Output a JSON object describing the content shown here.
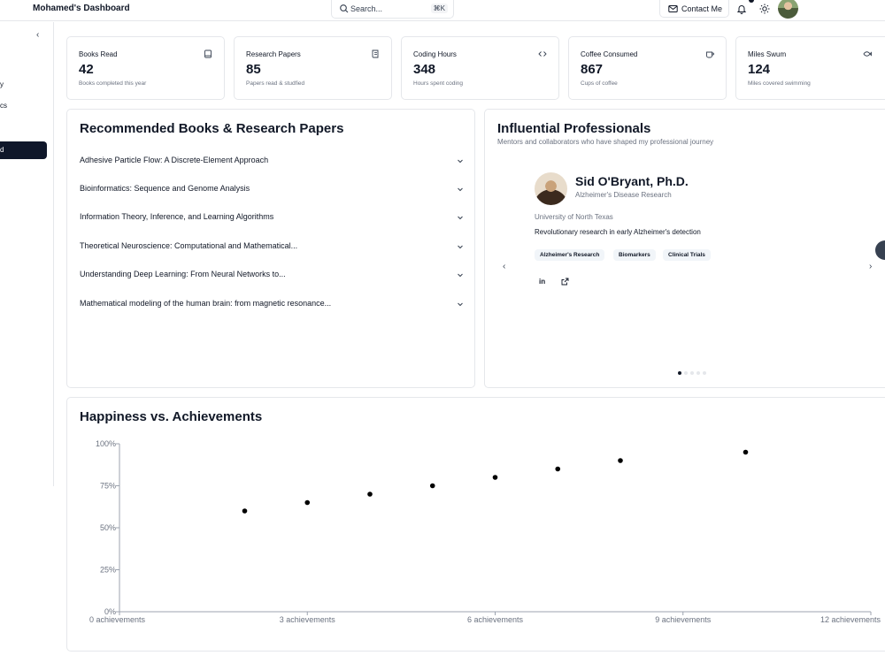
{
  "header": {
    "brand": "Mohamed's Dashboard",
    "search_placeholder": "Search...",
    "search_shortcut": "⌘K",
    "contact_label": "Contact Me"
  },
  "sidebar": {
    "collapse_icon": "chevron-left-icon",
    "fragments": [
      "y",
      "cs"
    ],
    "active_fragment": "d"
  },
  "stats": [
    {
      "label": "Books Read",
      "value": "42",
      "sub": "Books completed this year",
      "icon": "book-icon"
    },
    {
      "label": "Research Papers",
      "value": "85",
      "sub": "Papers read & studfied",
      "icon": "scroll-icon"
    },
    {
      "label": "Coding Hours",
      "value": "348",
      "sub": "Hours spent coding",
      "icon": "code-icon"
    },
    {
      "label": "Coffee Consumed",
      "value": "867",
      "sub": "Cups of coffee",
      "icon": "coffee-icon"
    },
    {
      "label": "Miles Swum",
      "value": "124",
      "sub": "Miles covered swimming",
      "icon": "fish-icon"
    }
  ],
  "books": {
    "title": "Recommended Books & Research Papers",
    "items": [
      "Adhesive Particle Flow: A Discrete-Element Approach",
      "Bioinformatics: Sequence and Genome Analysis",
      "Information Theory, Inference, and Learning Algorithms",
      "Theoretical Neuroscience: Computational and Mathematical...",
      "Understanding Deep Learning: From Neural Networks to...",
      "Mathematical modeling of the human brain: from magnetic resonance..."
    ]
  },
  "professionals": {
    "title": "Influential Professionals",
    "subtitle": "Mentors and collaborators who have shaped my professional journey",
    "current": {
      "name": "Sid O'Bryant, Ph.D.",
      "field": "Alzheimer's Disease Research",
      "university": "University of North Texas",
      "description": "Revolutionary research in early Alzheimer's detection",
      "tags": [
        "Alzheimer's Research",
        "Biomarkers",
        "Clinical Trials"
      ],
      "linkedin": "in"
    },
    "page_count": 5,
    "active_page": 0
  },
  "chart_data": {
    "type": "scatter",
    "title": "Happiness vs. Achievements",
    "x_ticks": [
      "0 achievements",
      "3 achievements",
      "6 achievements",
      "9 achievements",
      "12 achievements"
    ],
    "y_ticks": [
      "0%",
      "25%",
      "50%",
      "75%",
      "100%"
    ],
    "xlim": [
      0,
      12
    ],
    "ylim": [
      0,
      100
    ],
    "points": [
      {
        "x": 2,
        "y": 60
      },
      {
        "x": 3,
        "y": 65
      },
      {
        "x": 4,
        "y": 70
      },
      {
        "x": 5,
        "y": 75
      },
      {
        "x": 6,
        "y": 80
      },
      {
        "x": 7,
        "y": 85
      },
      {
        "x": 8,
        "y": 90
      },
      {
        "x": 10,
        "y": 95
      }
    ],
    "point_color": "#000000",
    "grid": false
  }
}
